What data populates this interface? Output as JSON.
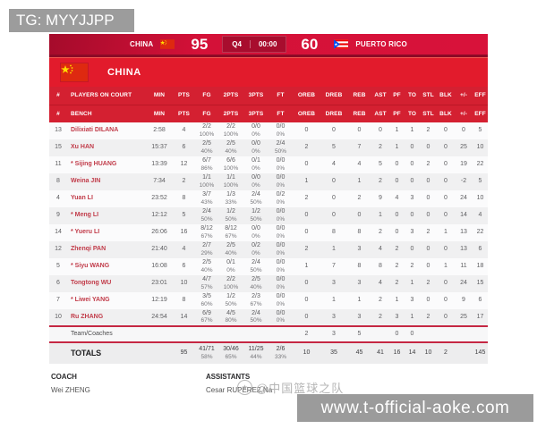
{
  "overlay": {
    "tg_badge": "TG: MYYJJPP",
    "site_watermark": "www.t-official-aoke.com",
    "weibo_watermark": "@中国篮球之队"
  },
  "colors": {
    "scoreboard_red": "#d41138",
    "band_red": "#e21b2c",
    "header_red": "#d42031",
    "divider_red": "#c52743",
    "player_name_red": "#c13b49",
    "badge_gray": "#9c9c9c"
  },
  "scoreboard": {
    "home_name": "CHINA",
    "home_score": "95",
    "period": "Q4",
    "clock": "00:00",
    "away_score": "60",
    "away_name": "PUERTO RICO"
  },
  "team_header": {
    "name": "CHINA"
  },
  "table": {
    "header_row1": [
      "#",
      "PLAYERS ON COURT",
      "MIN",
      "PTS",
      "FG",
      "2PTS",
      "3PTS",
      "FT",
      "OREB",
      "DREB",
      "REB",
      "AST",
      "PF",
      "TO",
      "STL",
      "BLK",
      "+/-",
      "EFF"
    ],
    "header_row2": [
      "#",
      "BENCH",
      "MIN",
      "PTS",
      "FG",
      "2PTS",
      "3PTS",
      "FT",
      "OREB",
      "DREB",
      "REB",
      "AST",
      "PF",
      "TO",
      "STL",
      "BLK",
      "+/-",
      "EFF"
    ],
    "players": [
      {
        "no": "13",
        "name": "Dilixiati DILANA",
        "min": "2:58",
        "pts": "4",
        "fg": "2/2",
        "fg_pct": "100%",
        "p2": "2/2",
        "p2_pct": "100%",
        "p3": "0/0",
        "p3_pct": "0%",
        "ft": "0/0",
        "ft_pct": "0%",
        "oreb": "0",
        "dreb": "0",
        "reb": "0",
        "ast": "0",
        "pf": "1",
        "to": "1",
        "stl": "2",
        "blk": "0",
        "pm": "0",
        "eff": "5"
      },
      {
        "no": "15",
        "name": "Xu HAN",
        "min": "15:37",
        "pts": "6",
        "fg": "2/5",
        "fg_pct": "40%",
        "p2": "2/5",
        "p2_pct": "40%",
        "p3": "0/0",
        "p3_pct": "0%",
        "ft": "2/4",
        "ft_pct": "50%",
        "oreb": "2",
        "dreb": "5",
        "reb": "7",
        "ast": "2",
        "pf": "1",
        "to": "0",
        "stl": "0",
        "blk": "0",
        "pm": "25",
        "eff": "10"
      },
      {
        "no": "11",
        "name": "* Sijing HUANG",
        "min": "13:39",
        "pts": "12",
        "fg": "6/7",
        "fg_pct": "86%",
        "p2": "6/6",
        "p2_pct": "100%",
        "p3": "0/1",
        "p3_pct": "0%",
        "ft": "0/0",
        "ft_pct": "0%",
        "oreb": "0",
        "dreb": "4",
        "reb": "4",
        "ast": "5",
        "pf": "0",
        "to": "0",
        "stl": "2",
        "blk": "0",
        "pm": "19",
        "eff": "22"
      },
      {
        "no": "8",
        "name": "Weina JIN",
        "min": "7:34",
        "pts": "2",
        "fg": "1/1",
        "fg_pct": "100%",
        "p2": "1/1",
        "p2_pct": "100%",
        "p3": "0/0",
        "p3_pct": "0%",
        "ft": "0/0",
        "ft_pct": "0%",
        "oreb": "1",
        "dreb": "0",
        "reb": "1",
        "ast": "2",
        "pf": "0",
        "to": "0",
        "stl": "0",
        "blk": "0",
        "pm": "-2",
        "eff": "5"
      },
      {
        "no": "4",
        "name": "Yuan LI",
        "min": "23:52",
        "pts": "8",
        "fg": "3/7",
        "fg_pct": "43%",
        "p2": "1/3",
        "p2_pct": "33%",
        "p3": "2/4",
        "p3_pct": "50%",
        "ft": "0/2",
        "ft_pct": "0%",
        "oreb": "2",
        "dreb": "0",
        "reb": "2",
        "ast": "9",
        "pf": "4",
        "to": "3",
        "stl": "0",
        "blk": "0",
        "pm": "24",
        "eff": "10"
      },
      {
        "no": "9",
        "name": "* Meng LI",
        "min": "12:12",
        "pts": "5",
        "fg": "2/4",
        "fg_pct": "50%",
        "p2": "1/2",
        "p2_pct": "50%",
        "p3": "1/2",
        "p3_pct": "50%",
        "ft": "0/0",
        "ft_pct": "0%",
        "oreb": "0",
        "dreb": "0",
        "reb": "0",
        "ast": "1",
        "pf": "0",
        "to": "0",
        "stl": "0",
        "blk": "0",
        "pm": "14",
        "eff": "4"
      },
      {
        "no": "14",
        "name": "* Yueru LI",
        "min": "26:06",
        "pts": "16",
        "fg": "8/12",
        "fg_pct": "67%",
        "p2": "8/12",
        "p2_pct": "67%",
        "p3": "0/0",
        "p3_pct": "0%",
        "ft": "0/0",
        "ft_pct": "0%",
        "oreb": "0",
        "dreb": "8",
        "reb": "8",
        "ast": "2",
        "pf": "0",
        "to": "3",
        "stl": "2",
        "blk": "1",
        "pm": "13",
        "eff": "22"
      },
      {
        "no": "12",
        "name": "Zhenqi PAN",
        "min": "21:40",
        "pts": "4",
        "fg": "2/7",
        "fg_pct": "29%",
        "p2": "2/5",
        "p2_pct": "40%",
        "p3": "0/2",
        "p3_pct": "0%",
        "ft": "0/0",
        "ft_pct": "0%",
        "oreb": "2",
        "dreb": "1",
        "reb": "3",
        "ast": "4",
        "pf": "2",
        "to": "0",
        "stl": "0",
        "blk": "0",
        "pm": "13",
        "eff": "6"
      },
      {
        "no": "5",
        "name": "* Siyu WANG",
        "min": "16:08",
        "pts": "6",
        "fg": "2/5",
        "fg_pct": "40%",
        "p2": "0/1",
        "p2_pct": "0%",
        "p3": "2/4",
        "p3_pct": "50%",
        "ft": "0/0",
        "ft_pct": "0%",
        "oreb": "1",
        "dreb": "7",
        "reb": "8",
        "ast": "8",
        "pf": "2",
        "to": "2",
        "stl": "0",
        "blk": "1",
        "pm": "11",
        "eff": "18"
      },
      {
        "no": "6",
        "name": "Tongtong WU",
        "min": "23:01",
        "pts": "10",
        "fg": "4/7",
        "fg_pct": "57%",
        "p2": "2/2",
        "p2_pct": "100%",
        "p3": "2/5",
        "p3_pct": "40%",
        "ft": "0/0",
        "ft_pct": "0%",
        "oreb": "0",
        "dreb": "3",
        "reb": "3",
        "ast": "4",
        "pf": "2",
        "to": "1",
        "stl": "2",
        "blk": "0",
        "pm": "24",
        "eff": "15"
      },
      {
        "no": "7",
        "name": "* Liwei YANG",
        "min": "12:19",
        "pts": "8",
        "fg": "3/5",
        "fg_pct": "60%",
        "p2": "1/2",
        "p2_pct": "50%",
        "p3": "2/3",
        "p3_pct": "67%",
        "ft": "0/0",
        "ft_pct": "0%",
        "oreb": "0",
        "dreb": "1",
        "reb": "1",
        "ast": "2",
        "pf": "1",
        "to": "3",
        "stl": "0",
        "blk": "0",
        "pm": "9",
        "eff": "6"
      },
      {
        "no": "10",
        "name": "Ru ZHANG",
        "min": "24:54",
        "pts": "14",
        "fg": "6/9",
        "fg_pct": "67%",
        "p2": "4/5",
        "p2_pct": "80%",
        "p3": "2/4",
        "p3_pct": "50%",
        "ft": "0/0",
        "ft_pct": "0%",
        "oreb": "0",
        "dreb": "3",
        "reb": "3",
        "ast": "2",
        "pf": "3",
        "to": "1",
        "stl": "2",
        "blk": "0",
        "pm": "25",
        "eff": "17"
      }
    ],
    "team_row": {
      "name": "Team/Coaches",
      "oreb": "2",
      "dreb": "3",
      "reb": "5",
      "pf": "0",
      "to": "0"
    },
    "totals": {
      "name": "TOTALS",
      "pts": "95",
      "fg": "41/71",
      "fg_pct": "58%",
      "p2": "30/46",
      "p2_pct": "65%",
      "p3": "11/25",
      "p3_pct": "44%",
      "ft": "2/6",
      "ft_pct": "33%",
      "oreb": "10",
      "dreb": "35",
      "reb": "45",
      "ast": "41",
      "pf": "16",
      "to": "14",
      "stl": "10",
      "blk": "2",
      "eff": "145"
    }
  },
  "staff": {
    "coach_label": "COACH",
    "coach_name": "Wei ZHENG",
    "assistants_label": "ASSISTANTS",
    "assistants_name": "Cesar RUPEREZ,Na"
  }
}
